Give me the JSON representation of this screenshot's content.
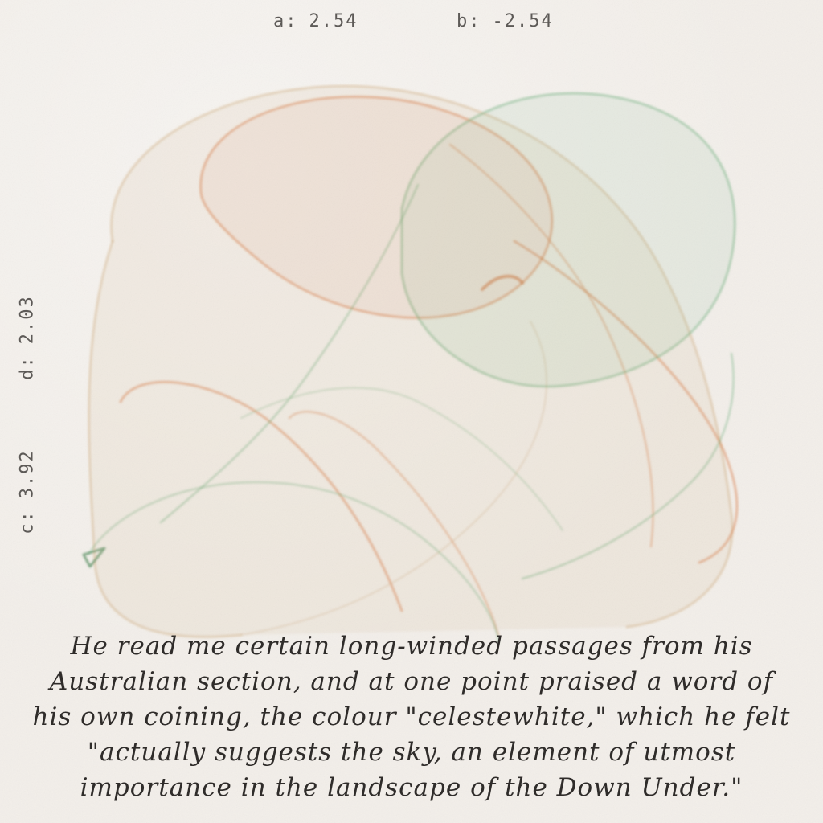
{
  "params": {
    "a": {
      "label": "a:",
      "value": "2.54"
    },
    "b": {
      "label": "b:",
      "value": "-2.54"
    },
    "c": {
      "label": "c:",
      "value": "3.92"
    },
    "d": {
      "label": "d:",
      "value": "2.03"
    }
  },
  "quote": {
    "lines": [
      "He read me certain long-winded passages from his",
      "Australian section, and at one point praised a word of",
      "his own coining, the colour \"celestewhite,\" which he felt",
      "\"actually suggests the sky, an element of utmost",
      "importance in the landscape of the Down Under.\""
    ]
  },
  "colors": {
    "background": "#f3efea",
    "orange": "#d9773f",
    "green": "#6fb07c",
    "tan": "#c9a06a",
    "text": "#2f2c2a"
  }
}
